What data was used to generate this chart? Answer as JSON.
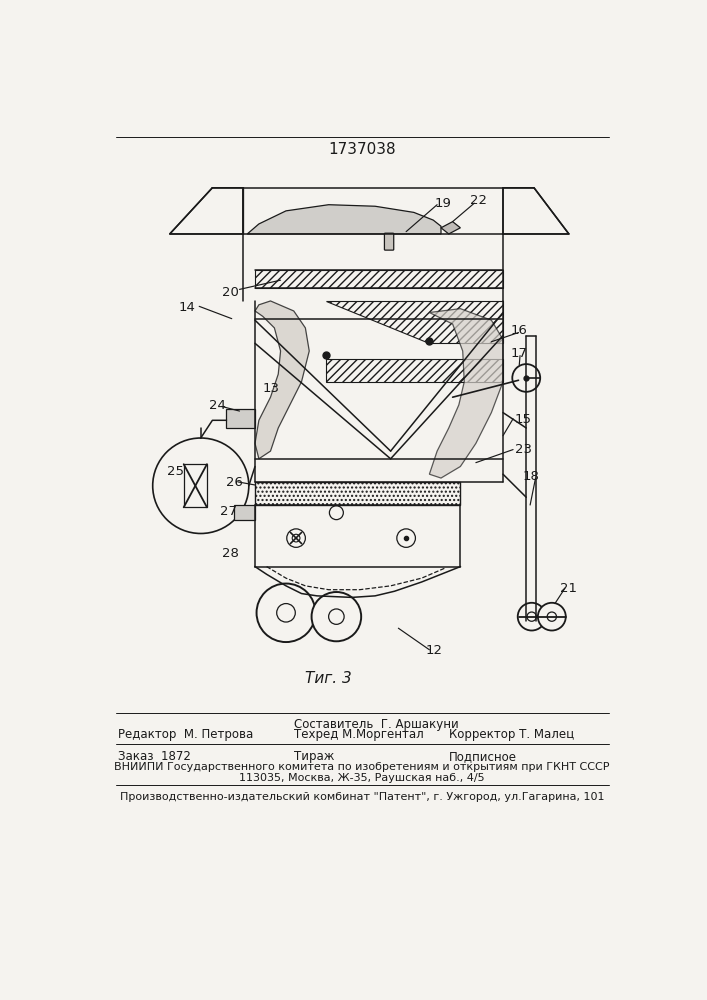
{
  "patent_number": "1737038",
  "fig_label": "Τиг. 3",
  "bg": "#f5f3ef",
  "lc": "#1a1a1a",
  "header_sestavitel": "Составитель  Г. Аршакуни",
  "header_left": "Редактор  М. Петрова",
  "header_center": "Техред М.Моргентал",
  "header_right": "Корректор Т. Малец",
  "order": "Заказ  1872",
  "tirazh": "Тираж",
  "podpisnoe": "Подписное",
  "vniip": "ВНИИПИ Государственного комитета по изобретениям и открытиям при ГКНТ СССР",
  "address": "113035, Москва, Ж-35, Раушская наб., 4/5",
  "publisher": "Производственно-издательский комбинат \"Патент\", г. Ужгород, ул.Гагарина, 101"
}
